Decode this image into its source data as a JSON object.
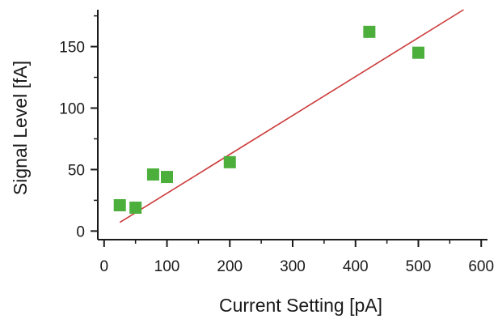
{
  "chart_data": {
    "type": "scatter",
    "title": "",
    "xlabel": "Current Setting [pA]",
    "ylabel": "Signal Level [fA]",
    "xlim": [
      -10,
      610
    ],
    "ylim": [
      -7,
      180
    ],
    "x_ticks": [
      0,
      100,
      200,
      300,
      400,
      500,
      600
    ],
    "y_ticks": [
      0,
      50,
      100,
      150
    ],
    "grid": false,
    "legend": "none",
    "series": [
      {
        "type": "scatter",
        "marker": "square",
        "color": "#4caf3c",
        "points": [
          {
            "x": 25,
            "y": 21
          },
          {
            "x": 50,
            "y": 19
          },
          {
            "x": 78,
            "y": 46
          },
          {
            "x": 100,
            "y": 44
          },
          {
            "x": 200,
            "y": 56
          },
          {
            "x": 422,
            "y": 162
          },
          {
            "x": 500,
            "y": 145
          }
        ]
      },
      {
        "type": "line",
        "style": "fit",
        "color": "#cc3a3a",
        "points": [
          {
            "x": 25,
            "y": 7
          },
          {
            "x": 572,
            "y": 180
          }
        ]
      }
    ]
  }
}
